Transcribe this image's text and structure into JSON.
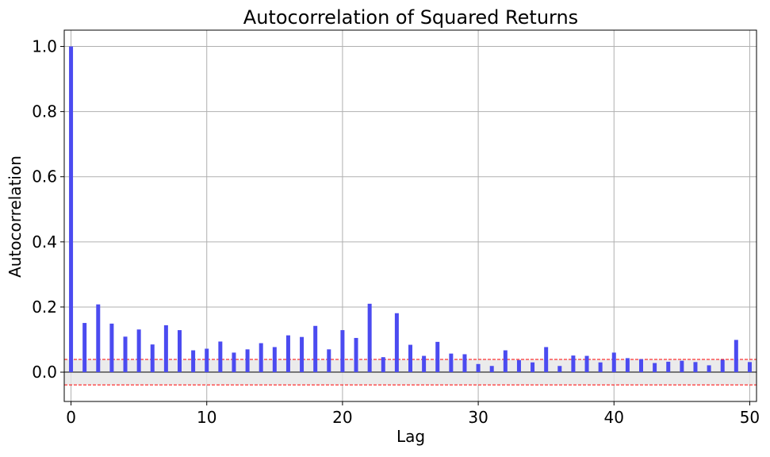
{
  "chart_data": {
    "type": "bar",
    "title": "Autocorrelation of Squared Returns",
    "xlabel": "Lag",
    "ylabel": "Autocorrelation",
    "xlim": [
      -0.5,
      50.5
    ],
    "ylim": [
      -0.09,
      1.05
    ],
    "x_ticks": [
      0,
      10,
      20,
      30,
      40,
      50
    ],
    "x_tick_labels": [
      "0",
      "10",
      "20",
      "30",
      "40",
      "50"
    ],
    "y_ticks": [
      0.0,
      0.2,
      0.4,
      0.6,
      0.8,
      1.0
    ],
    "y_tick_labels": [
      "0.0",
      "0.2",
      "0.4",
      "0.6",
      "0.8",
      "1.0"
    ],
    "grid": true,
    "bar_color": "#4b4bf0",
    "confidence_band": {
      "lower": -0.039,
      "upper": 0.039,
      "line_color": "#ff0000",
      "fill_color": "#e6e6e6"
    },
    "lags": [
      0,
      1,
      2,
      3,
      4,
      5,
      6,
      7,
      8,
      9,
      10,
      11,
      12,
      13,
      14,
      15,
      16,
      17,
      18,
      19,
      20,
      21,
      22,
      23,
      24,
      25,
      26,
      27,
      28,
      29,
      30,
      31,
      32,
      33,
      34,
      35,
      36,
      37,
      38,
      39,
      40,
      41,
      42,
      43,
      44,
      45,
      46,
      47,
      48,
      49,
      50
    ],
    "values": [
      1.0,
      0.151,
      0.208,
      0.149,
      0.109,
      0.131,
      0.085,
      0.144,
      0.129,
      0.067,
      0.072,
      0.094,
      0.06,
      0.07,
      0.089,
      0.077,
      0.113,
      0.108,
      0.142,
      0.07,
      0.129,
      0.105,
      0.21,
      0.046,
      0.181,
      0.084,
      0.05,
      0.093,
      0.057,
      0.055,
      0.025,
      0.019,
      0.067,
      0.037,
      0.03,
      0.077,
      0.019,
      0.051,
      0.05,
      0.03,
      0.06,
      0.043,
      0.04,
      0.028,
      0.032,
      0.035,
      0.031,
      0.021,
      0.038,
      0.099,
      0.031
    ]
  }
}
